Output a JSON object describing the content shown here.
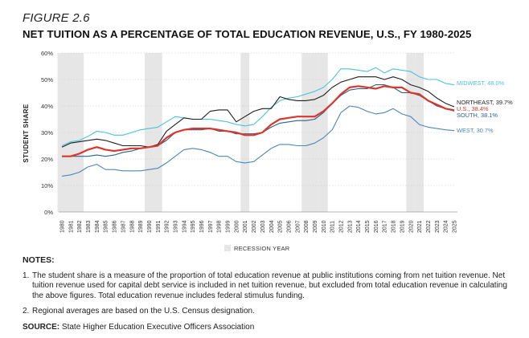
{
  "figure_label": "FIGURE 2.6",
  "notes": {
    "heading": "NOTES:",
    "items": [
      {
        "num": "1.",
        "text": "The student share is a measure of the proportion of total education revenue at public institutions coming from net tuition revenue. Net tuition revenue used for capital debt service is included in net tuition revenue, but excluded from total education revenue in calculating the above figures. Total education revenue includes federal stimulus funding."
      },
      {
        "num": "2.",
        "text": "Regional averages are based on the U.S. Census designation."
      }
    ],
    "source_label": "SOURCE:",
    "source_text": "State Higher Education Executive Officers Association"
  },
  "colors": {
    "midwest": "#4cc3d9",
    "northeast": "#1f1f1f",
    "us": "#d9372b",
    "south": "#2b5f8e",
    "west": "#4f86b5",
    "recession": "#e6e6e6"
  },
  "chart_data": {
    "type": "line",
    "title": "NET TUITION AS A PERCENTAGE OF TOTAL EDUCATION REVENUE, U.S., FY 1980-2025",
    "ylabel": "STUDENT SHARE",
    "xlabel": "",
    "ylim": [
      0,
      60
    ],
    "yticks": [
      "0%",
      "10%",
      "20%",
      "30%",
      "40%",
      "50%",
      "60%"
    ],
    "x": [
      "1980",
      "1981",
      "1982",
      "1983",
      "1984",
      "1985",
      "1986",
      "1987",
      "1988",
      "1989",
      "1990",
      "1991",
      "1992",
      "1993",
      "1994",
      "1995",
      "1996",
      "1997",
      "1998",
      "1999",
      "2000",
      "2001",
      "2002",
      "2003",
      "2004",
      "2005",
      "2006",
      "2007",
      "2008",
      "2009",
      "2010",
      "2011",
      "2012",
      "2013",
      "2014",
      "2015",
      "2016",
      "2017",
      "2018",
      "2019",
      "2020",
      "2021",
      "2022",
      "2023",
      "2024",
      "2025"
    ],
    "recession_years": [
      "1980",
      "1981",
      "1982",
      "1990",
      "1991",
      "2001",
      "2008",
      "2009",
      "2010",
      "2020",
      "2021"
    ],
    "legend": [
      {
        "label": "RECESSION YEAR"
      }
    ],
    "series": [
      {
        "name": "MIDWEST",
        "label": "MIDWEST, 48.0%",
        "key": "midwest",
        "values": [
          25,
          26.5,
          27,
          28.5,
          30.5,
          30,
          29,
          29,
          30,
          31,
          31.5,
          32,
          34,
          36,
          35.5,
          35,
          35,
          35,
          34.5,
          34,
          33,
          32.5,
          33,
          36,
          39.5,
          42,
          43,
          43.5,
          44.5,
          45.5,
          47,
          50,
          54,
          54,
          53.5,
          53,
          54.5,
          52.5,
          54,
          53.5,
          53,
          51,
          50,
          50,
          48.5,
          48
        ]
      },
      {
        "name": "NORTHEAST",
        "label": "NORTHEAST, 39.7%",
        "key": "northeast",
        "values": [
          24.5,
          26,
          26.5,
          27,
          27.5,
          27,
          26,
          25,
          25,
          25,
          24.5,
          25.5,
          30.5,
          33,
          35.5,
          35,
          35,
          38,
          38.5,
          38.5,
          34,
          36,
          38,
          39,
          39,
          43.5,
          42.5,
          42,
          42,
          42.5,
          44,
          47,
          49,
          50,
          51,
          51,
          51,
          50,
          51,
          50,
          48,
          47,
          45.5,
          43,
          41,
          39.7
        ]
      },
      {
        "name": "U.S.",
        "label": "U.S., 38.4%",
        "key": "us",
        "values": [
          21,
          21,
          22,
          23.5,
          24.5,
          23.5,
          23,
          23.5,
          24,
          24,
          24.5,
          25,
          28,
          30,
          31,
          31.5,
          31.5,
          31.5,
          31,
          30.5,
          30,
          29,
          29,
          30,
          33,
          35,
          35.5,
          36,
          36,
          36,
          38,
          41,
          44.5,
          47,
          47.5,
          47,
          46.5,
          47.5,
          47,
          47,
          45,
          44.5,
          42,
          40.5,
          39,
          38.4
        ]
      },
      {
        "name": "SOUTH",
        "label": "SOUTH, 38.1%",
        "key": "south",
        "values": [
          21,
          21,
          21,
          21,
          21.5,
          21,
          21.5,
          22.5,
          23,
          24,
          24.5,
          25,
          27,
          30,
          31,
          31,
          31,
          31.5,
          30.5,
          30.5,
          29.5,
          29.5,
          29.5,
          30,
          32,
          33.5,
          34,
          34.5,
          34.5,
          35,
          37.5,
          41,
          44,
          46,
          46.5,
          46.5,
          48,
          48,
          47,
          45,
          45,
          44,
          42,
          40,
          39,
          38.1
        ]
      },
      {
        "name": "WEST",
        "label": "WEST, 30.7%",
        "key": "west",
        "values": [
          13.5,
          14,
          15,
          17,
          18,
          16,
          16,
          15.5,
          15.5,
          15.5,
          16,
          16.5,
          18.5,
          21,
          23.5,
          24,
          23.5,
          22.5,
          21,
          21,
          19,
          18.5,
          19,
          21.5,
          24,
          25.5,
          25.5,
          25,
          25,
          26,
          28,
          31,
          37.5,
          40,
          39.5,
          38,
          37,
          37.5,
          39,
          37,
          36,
          33,
          32,
          31.5,
          31,
          30.7
        ]
      }
    ]
  }
}
